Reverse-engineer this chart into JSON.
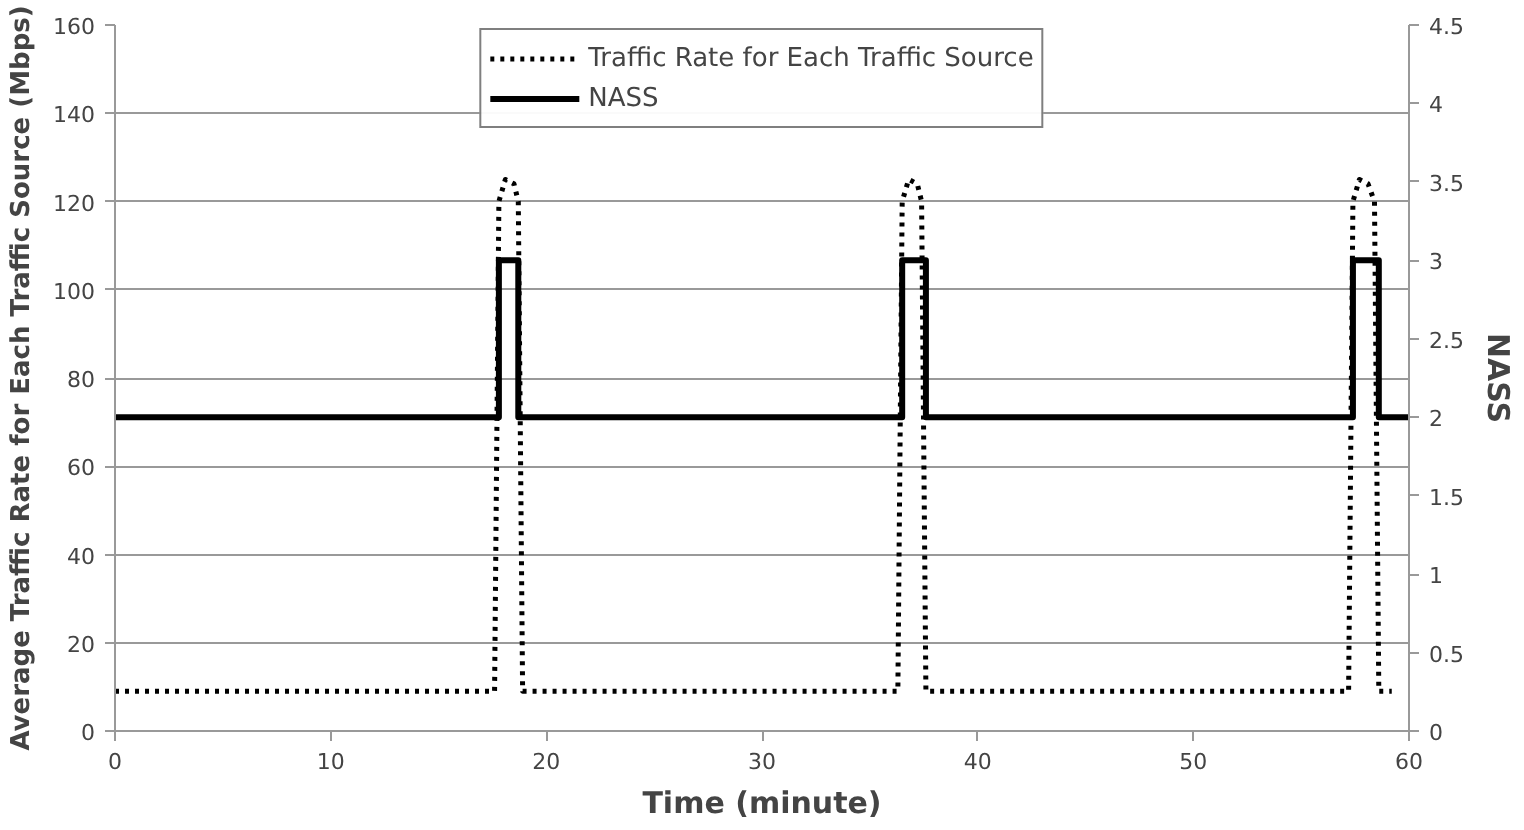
{
  "chart_data": {
    "type": "line",
    "xlabel": "Time (minute)",
    "ylabel": "Average Traffic Rate for Each Traffic Source (Mbps)",
    "y2label": "NASS",
    "xlim": [
      0,
      60
    ],
    "xticks": [
      0,
      10,
      20,
      30,
      40,
      50,
      60
    ],
    "ylim": [
      0,
      160
    ],
    "yticks": [
      0,
      20,
      40,
      60,
      80,
      100,
      120,
      140,
      160
    ],
    "y2lim": [
      0,
      4.5
    ],
    "y2ticks": [
      0,
      0.5,
      1,
      1.5,
      2,
      2.5,
      3,
      3.5,
      4,
      4.5
    ],
    "grid": "y",
    "legend": "top",
    "marker": "none",
    "series": [
      {
        "name": "Traffic Rate for Each Traffic Source",
        "color": "#000000",
        "line_style": "dotted",
        "x": [
          0,
          17.6,
          17.8,
          18.1,
          18.5,
          18.7,
          18.9,
          36.3,
          36.5,
          36.8,
          37.2,
          37.4,
          37.6,
          57.2,
          57.4,
          57.7,
          58.1,
          58.4,
          58.6,
          59.2
        ],
        "values": [
          9,
          9,
          120,
          125,
          124,
          120,
          9,
          9,
          120,
          125,
          124,
          120,
          9,
          9,
          120,
          125,
          124,
          120,
          9,
          9
        ]
      },
      {
        "name": "NASS",
        "color": "#000000",
        "line_style": "solid",
        "axis": "y2",
        "x": [
          0,
          17.8,
          17.8,
          18.7,
          18.7,
          36.5,
          36.5,
          37.6,
          37.6,
          57.4,
          57.4,
          58.6,
          58.6,
          60
        ],
        "values": [
          2,
          2,
          3,
          3,
          2,
          2,
          3,
          3,
          2,
          2,
          3,
          3,
          2,
          2
        ]
      }
    ]
  }
}
